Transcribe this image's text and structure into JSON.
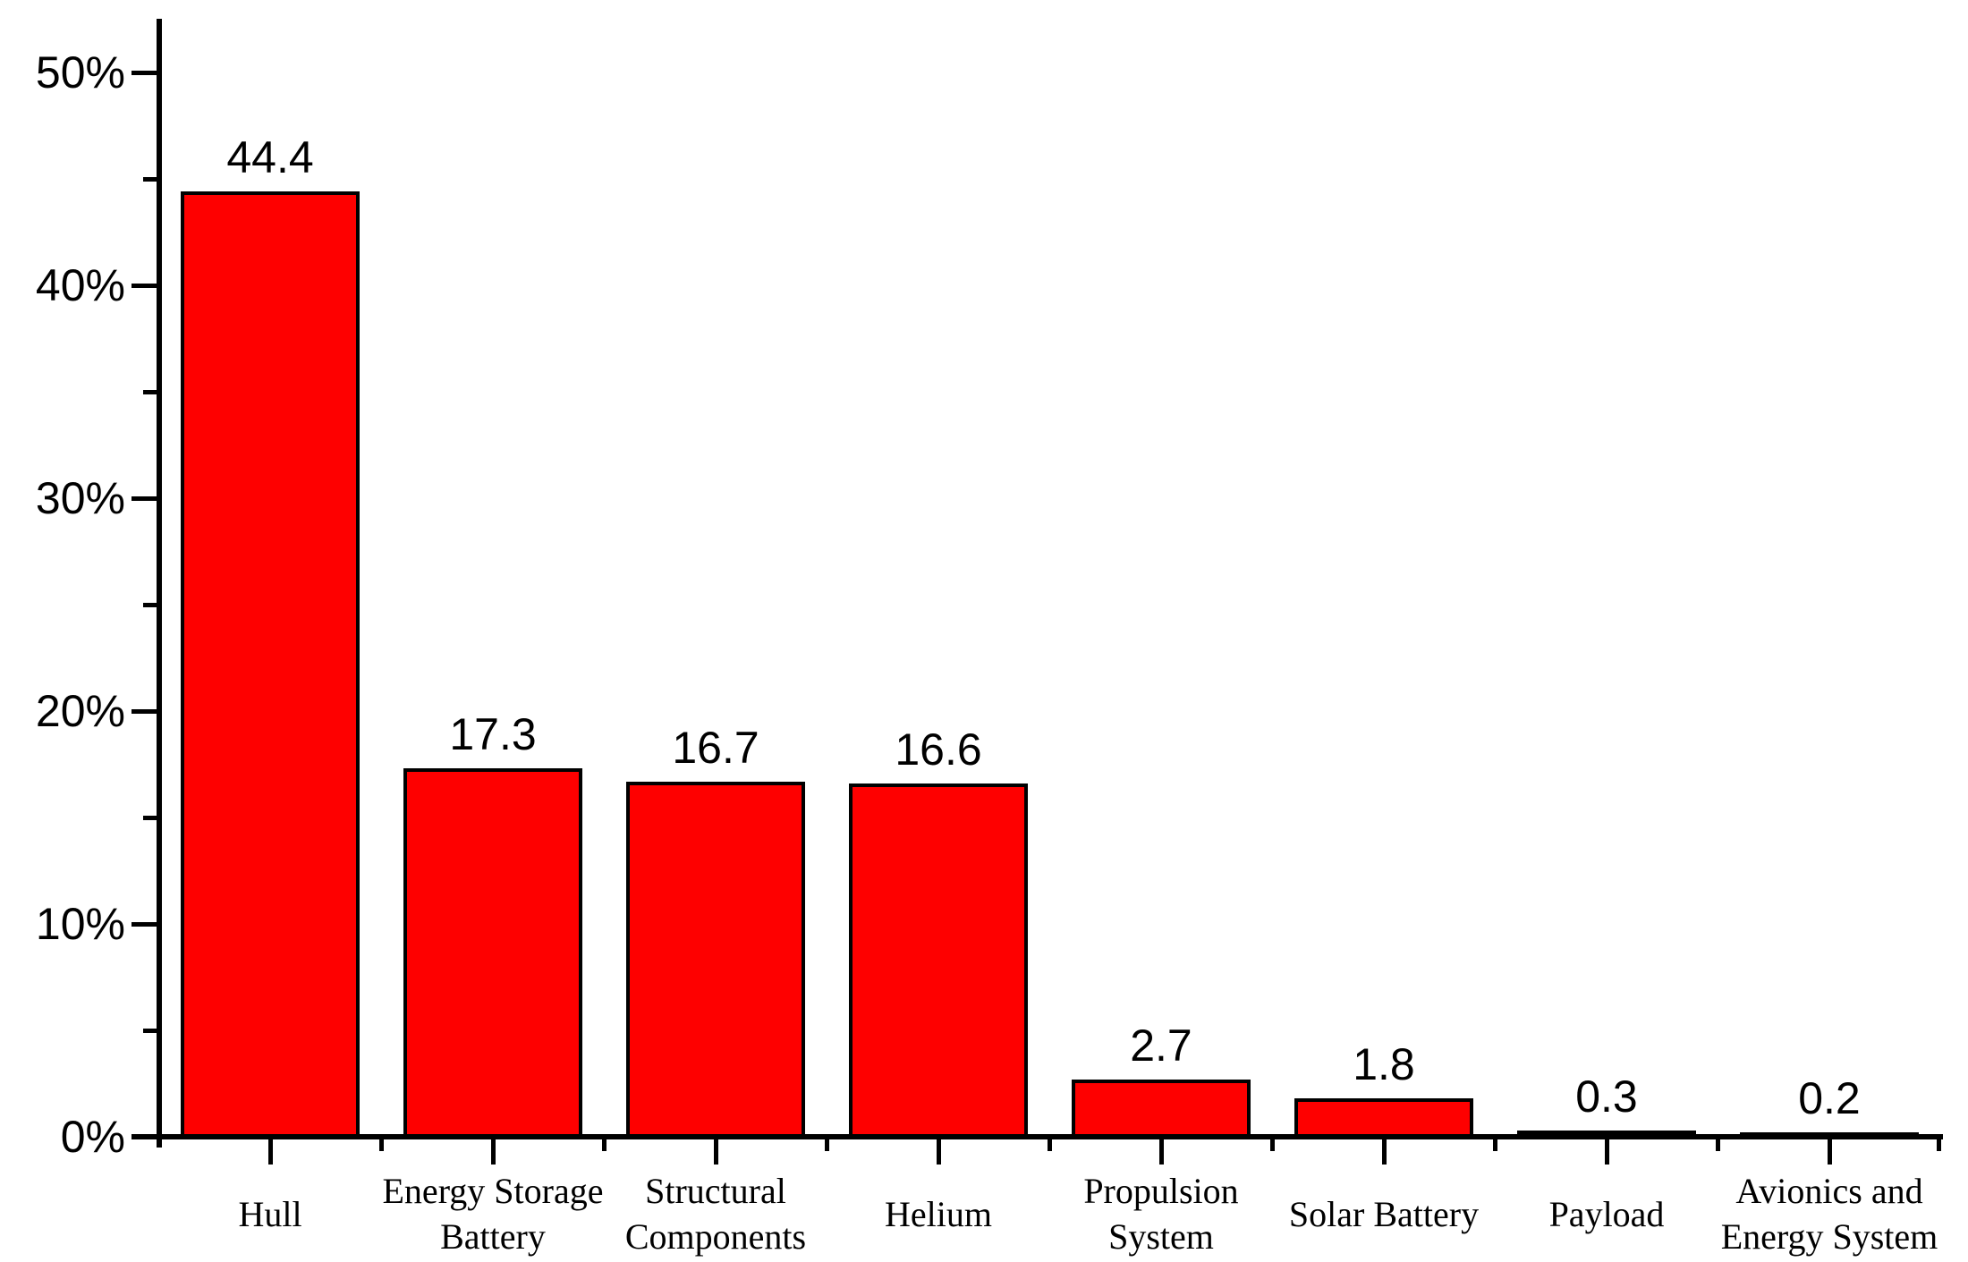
{
  "chart_data": {
    "type": "bar",
    "categories": [
      "Hull",
      "Energy Storage\nBattery",
      "Structural\nComponents",
      "Helium",
      "Propulsion\nSystem",
      "Solar Battery",
      "Payload",
      "Avionics and\nEnergy System"
    ],
    "values": [
      44.4,
      17.3,
      16.7,
      16.6,
      2.7,
      1.8,
      0.3,
      0.2
    ],
    "value_labels": [
      "44.4",
      "17.3",
      "16.7",
      "16.6",
      "2.7",
      "1.8",
      "0.3",
      "0.2"
    ],
    "y_axis": {
      "unit": "%",
      "major_ticks": [
        0,
        10,
        20,
        30,
        40,
        50
      ],
      "tick_labels": [
        "0%",
        "10%",
        "20%",
        "30%",
        "40%",
        "50%"
      ],
      "minor_ticks": [
        5,
        15,
        25,
        35,
        45
      ],
      "ylim": [
        0,
        52.5
      ]
    },
    "xlabel": "",
    "ylabel": "",
    "grid": false,
    "legend": false,
    "bar_color": "#fe0000",
    "bar_border_color": "#000000",
    "text_color": "#000000",
    "background_color": "#ffffff"
  }
}
